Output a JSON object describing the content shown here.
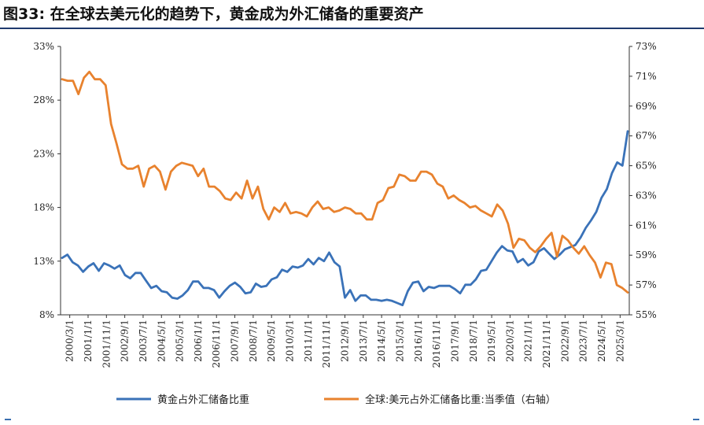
{
  "title": "图33: 在全球去美元化的趋势下，黄金成为外汇储备的重要资产",
  "chart_data": {
    "type": "line",
    "x_ticks": [
      "2000/3/1",
      "2001/1/1",
      "2001/11/1",
      "2002/9/1",
      "2003/7/1",
      "2004/5/1",
      "2005/3/1",
      "2006/1/1",
      "2006/11/1",
      "2007/9/1",
      "2008/7/1",
      "2009/5/1",
      "2010/3/1",
      "2011/1/1",
      "2011/11/1",
      "2012/9/1",
      "2013/7/1",
      "2014/5/1",
      "2015/3/1",
      "2016/1/1",
      "2016/11/1",
      "2017/9/1",
      "2018/7/1",
      "2019/5/1",
      "2020/3/1",
      "2021/1/1",
      "2021/11/1",
      "2022/9/1",
      "2023/7/1",
      "2024/5/1",
      "2025/3/1"
    ],
    "y_left": {
      "ticks": [
        "8%",
        "13%",
        "18%",
        "23%",
        "28%",
        "33%"
      ],
      "min": 8,
      "max": 33
    },
    "y_right": {
      "ticks": [
        "55%",
        "57%",
        "59%",
        "61%",
        "63%",
        "65%",
        "67%",
        "69%",
        "71%",
        "73%"
      ],
      "min": 55,
      "max": 73
    },
    "grid": false,
    "legend_position": "bottom",
    "series": [
      {
        "name": "黄金占外汇储备比重",
        "axis": "left",
        "color": "#3a72b8",
        "values": [
          13.3,
          13.6,
          12.9,
          12.6,
          12.0,
          12.5,
          12.8,
          12.1,
          12.8,
          12.6,
          12.3,
          12.6,
          11.7,
          11.4,
          11.9,
          11.9,
          11.2,
          10.5,
          10.7,
          10.2,
          10.1,
          9.6,
          9.5,
          9.8,
          10.3,
          11.1,
          11.1,
          10.5,
          10.5,
          10.3,
          9.6,
          10.2,
          10.7,
          11.0,
          10.6,
          10.0,
          10.1,
          10.9,
          10.6,
          10.7,
          11.3,
          11.5,
          12.2,
          12.0,
          12.5,
          12.4,
          12.6,
          13.2,
          12.7,
          13.3,
          13.0,
          13.8,
          12.9,
          12.5,
          9.6,
          10.3,
          9.3,
          9.8,
          9.8,
          9.4,
          9.4,
          9.3,
          9.4,
          9.3,
          9.1,
          8.9,
          10.2,
          11.0,
          11.1,
          10.2,
          10.6,
          10.5,
          10.7,
          10.7,
          10.7,
          10.4,
          10.0,
          10.8,
          10.8,
          11.3,
          12.1,
          12.2,
          13.0,
          13.8,
          14.4,
          14.0,
          13.9,
          12.9,
          13.2,
          12.6,
          12.9,
          13.9,
          14.2,
          13.7,
          13.2,
          13.6,
          14.1,
          14.3,
          14.5,
          15.2,
          16.1,
          16.8,
          17.6,
          18.9,
          19.7,
          21.2,
          22.2,
          21.9,
          25.1
        ]
      },
      {
        "name": "全球:美元占外汇储备比重:当季值（右轴）",
        "axis": "right",
        "color": "#e8822e",
        "values": [
          70.8,
          70.7,
          70.7,
          69.8,
          70.9,
          71.3,
          70.8,
          70.8,
          70.4,
          67.8,
          66.5,
          65.1,
          64.8,
          64.8,
          65.0,
          63.6,
          64.8,
          65.0,
          64.6,
          63.4,
          64.6,
          65.0,
          65.2,
          65.1,
          65.0,
          64.3,
          64.8,
          63.6,
          63.6,
          63.3,
          62.8,
          62.7,
          63.2,
          62.8,
          64.0,
          62.8,
          63.6,
          62.1,
          61.4,
          62.2,
          61.9,
          62.5,
          61.8,
          61.9,
          61.8,
          61.6,
          62.2,
          62.6,
          62.1,
          62.2,
          61.9,
          62.0,
          62.2,
          62.1,
          61.8,
          61.8,
          61.4,
          61.4,
          62.5,
          62.7,
          63.5,
          63.6,
          64.4,
          64.3,
          64.0,
          64.0,
          64.6,
          64.6,
          64.4,
          63.8,
          63.6,
          62.8,
          63.0,
          62.7,
          62.5,
          62.2,
          62.3,
          62.0,
          61.8,
          61.6,
          62.4,
          62.0,
          61.1,
          59.5,
          60.1,
          60.0,
          59.5,
          59.2,
          59.6,
          60.1,
          60.5,
          58.9,
          60.3,
          60.0,
          59.5,
          59.1,
          59.6,
          59.0,
          58.5,
          57.5,
          58.5,
          58.4,
          57.0,
          56.8,
          56.5
        ]
      }
    ],
    "legend": [
      "黄金占外汇储备比重",
      "全球:美元占外汇储备比重:当季值（右轴）"
    ]
  }
}
